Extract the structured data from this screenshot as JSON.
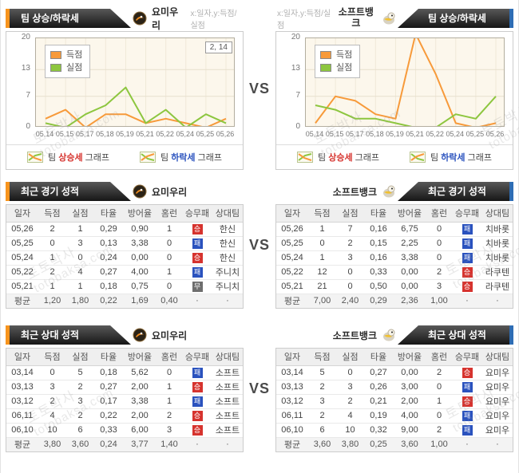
{
  "vs_label": "VS",
  "watermark": {
    "line1": "토토박사",
    "line2": "totobaksa.com"
  },
  "teams": {
    "left": {
      "name": "요미우리"
    },
    "right": {
      "name": "소프트뱅크"
    }
  },
  "top_section": {
    "tab_title": "팀 상승/하락세",
    "axis_note": "x:일자,y:득점/실점",
    "legend": [
      "득점",
      "실점"
    ],
    "buttons": [
      {
        "prefix": "팀 ",
        "accent": "상승세",
        "suffix": " 그래프"
      },
      {
        "prefix": "팀 ",
        "accent": "하락세",
        "suffix": " 그래프"
      }
    ]
  },
  "chart_data": [
    {
      "type": "line",
      "title": "요미우리 팀 상승/하락세",
      "x_labels": [
        "05,14",
        "05,15",
        "05,17",
        "05,18",
        "05,19",
        "05,21",
        "05,22",
        "05,24",
        "05,25",
        "05,26"
      ],
      "y_ticks": [
        0,
        7,
        13,
        20
      ],
      "ylim": [
        0,
        20
      ],
      "grid": true,
      "legend_position": "top-left",
      "annotation": "2, 14",
      "series": [
        {
          "name": "득점",
          "color": "#F79A3A",
          "values": [
            2,
            4,
            0,
            3,
            3,
            1,
            2,
            1,
            0,
            2
          ]
        },
        {
          "name": "실점",
          "color": "#8DC63F",
          "values": [
            1,
            0,
            3,
            5,
            9,
            1,
            4,
            0,
            3,
            1
          ]
        }
      ]
    },
    {
      "type": "line",
      "title": "소프트뱅크 팀 상승/하락세",
      "x_labels": [
        "05,14",
        "05,15",
        "05,17",
        "05,18",
        "05,19",
        "05,21",
        "05,22",
        "05,24",
        "05,25",
        "05,26"
      ],
      "y_ticks": [
        0,
        7,
        13,
        20
      ],
      "ylim": [
        0,
        20
      ],
      "grid": true,
      "legend_position": "top-left",
      "annotation": "",
      "series": [
        {
          "name": "득점",
          "color": "#F79A3A",
          "values": [
            1,
            7,
            6,
            3,
            2,
            21,
            12,
            1,
            0,
            1
          ]
        },
        {
          "name": "실점",
          "color": "#8DC63F",
          "values": [
            5,
            4,
            2,
            2,
            1,
            0,
            0,
            3,
            2,
            7
          ]
        }
      ]
    }
  ],
  "recent_section": {
    "tab_title": "최근 경기 성적",
    "columns": [
      "일자",
      "득점",
      "실점",
      "타율",
      "방어율",
      "홈런",
      "승무패",
      "상대팀"
    ],
    "left": {
      "rows": [
        {
          "date": "05,26",
          "score": "2",
          "concede": "1",
          "batting": "0,29",
          "era": "0,90",
          "hr": "1",
          "result": "승",
          "opponent": "한신"
        },
        {
          "date": "05,25",
          "score": "0",
          "concede": "3",
          "batting": "0,13",
          "era": "3,38",
          "hr": "0",
          "result": "패",
          "opponent": "한신"
        },
        {
          "date": "05,24",
          "score": "1",
          "concede": "0",
          "batting": "0,24",
          "era": "0,00",
          "hr": "0",
          "result": "승",
          "opponent": "한신"
        },
        {
          "date": "05,22",
          "score": "2",
          "concede": "4",
          "batting": "0,27",
          "era": "4,00",
          "hr": "1",
          "result": "패",
          "opponent": "주니치"
        },
        {
          "date": "05,21",
          "score": "1",
          "concede": "1",
          "batting": "0,18",
          "era": "0,75",
          "hr": "0",
          "result": "무",
          "opponent": "주니치"
        }
      ],
      "average": {
        "date": "평균",
        "score": "1,20",
        "concede": "1,80",
        "batting": "0,22",
        "era": "1,69",
        "hr": "0,40",
        "result": "·",
        "opponent": "·"
      }
    },
    "right": {
      "rows": [
        {
          "date": "05,26",
          "score": "1",
          "concede": "7",
          "batting": "0,16",
          "era": "6,75",
          "hr": "0",
          "result": "패",
          "opponent": "치바롯"
        },
        {
          "date": "05,25",
          "score": "0",
          "concede": "2",
          "batting": "0,15",
          "era": "2,25",
          "hr": "0",
          "result": "패",
          "opponent": "치바롯"
        },
        {
          "date": "05,24",
          "score": "1",
          "concede": "3",
          "batting": "0,16",
          "era": "3,38",
          "hr": "0",
          "result": "패",
          "opponent": "치바롯"
        },
        {
          "date": "05,22",
          "score": "12",
          "concede": "0",
          "batting": "0,33",
          "era": "0,00",
          "hr": "2",
          "result": "승",
          "opponent": "라쿠텐"
        },
        {
          "date": "05,21",
          "score": "21",
          "concede": "0",
          "batting": "0,50",
          "era": "0,00",
          "hr": "3",
          "result": "승",
          "opponent": "라쿠텐"
        }
      ],
      "average": {
        "date": "평균",
        "score": "7,00",
        "concede": "2,40",
        "batting": "0,29",
        "era": "2,36",
        "hr": "1,00",
        "result": "·",
        "opponent": "·"
      }
    }
  },
  "h2h_section": {
    "tab_title": "최근 상대 성적",
    "columns": [
      "일자",
      "득점",
      "실점",
      "타율",
      "방어율",
      "홈런",
      "승무패",
      "상대팀"
    ],
    "left": {
      "rows": [
        {
          "date": "03,14",
          "score": "0",
          "concede": "5",
          "batting": "0,18",
          "era": "5,62",
          "hr": "0",
          "result": "패",
          "opponent": "소프트"
        },
        {
          "date": "03,13",
          "score": "3",
          "concede": "2",
          "batting": "0,27",
          "era": "2,00",
          "hr": "1",
          "result": "승",
          "opponent": "소프트"
        },
        {
          "date": "03,12",
          "score": "2",
          "concede": "3",
          "batting": "0,17",
          "era": "3,38",
          "hr": "1",
          "result": "패",
          "opponent": "소프트"
        },
        {
          "date": "06,11",
          "score": "4",
          "concede": "2",
          "batting": "0,22",
          "era": "2,00",
          "hr": "2",
          "result": "승",
          "opponent": "소프트"
        },
        {
          "date": "06,10",
          "score": "10",
          "concede": "6",
          "batting": "0,33",
          "era": "6,00",
          "hr": "3",
          "result": "승",
          "opponent": "소프트"
        }
      ],
      "average": {
        "date": "평균",
        "score": "3,80",
        "concede": "3,60",
        "batting": "0,24",
        "era": "3,77",
        "hr": "1,40",
        "result": "·",
        "opponent": "·"
      }
    },
    "right": {
      "rows": [
        {
          "date": "03,14",
          "score": "5",
          "concede": "0",
          "batting": "0,27",
          "era": "0,00",
          "hr": "2",
          "result": "승",
          "opponent": "요미우"
        },
        {
          "date": "03,13",
          "score": "2",
          "concede": "3",
          "batting": "0,26",
          "era": "3,00",
          "hr": "0",
          "result": "패",
          "opponent": "요미우"
        },
        {
          "date": "03,12",
          "score": "3",
          "concede": "2",
          "batting": "0,21",
          "era": "2,00",
          "hr": "1",
          "result": "승",
          "opponent": "요미우"
        },
        {
          "date": "06,11",
          "score": "2",
          "concede": "4",
          "batting": "0,19",
          "era": "4,00",
          "hr": "0",
          "result": "패",
          "opponent": "요미우"
        },
        {
          "date": "06,10",
          "score": "6",
          "concede": "10",
          "batting": "0,32",
          "era": "9,00",
          "hr": "2",
          "result": "패",
          "opponent": "요미우"
        }
      ],
      "average": {
        "date": "평균",
        "score": "3,60",
        "concede": "3,80",
        "batting": "0,25",
        "era": "3,60",
        "hr": "1,00",
        "result": "·",
        "opponent": "·"
      }
    }
  }
}
